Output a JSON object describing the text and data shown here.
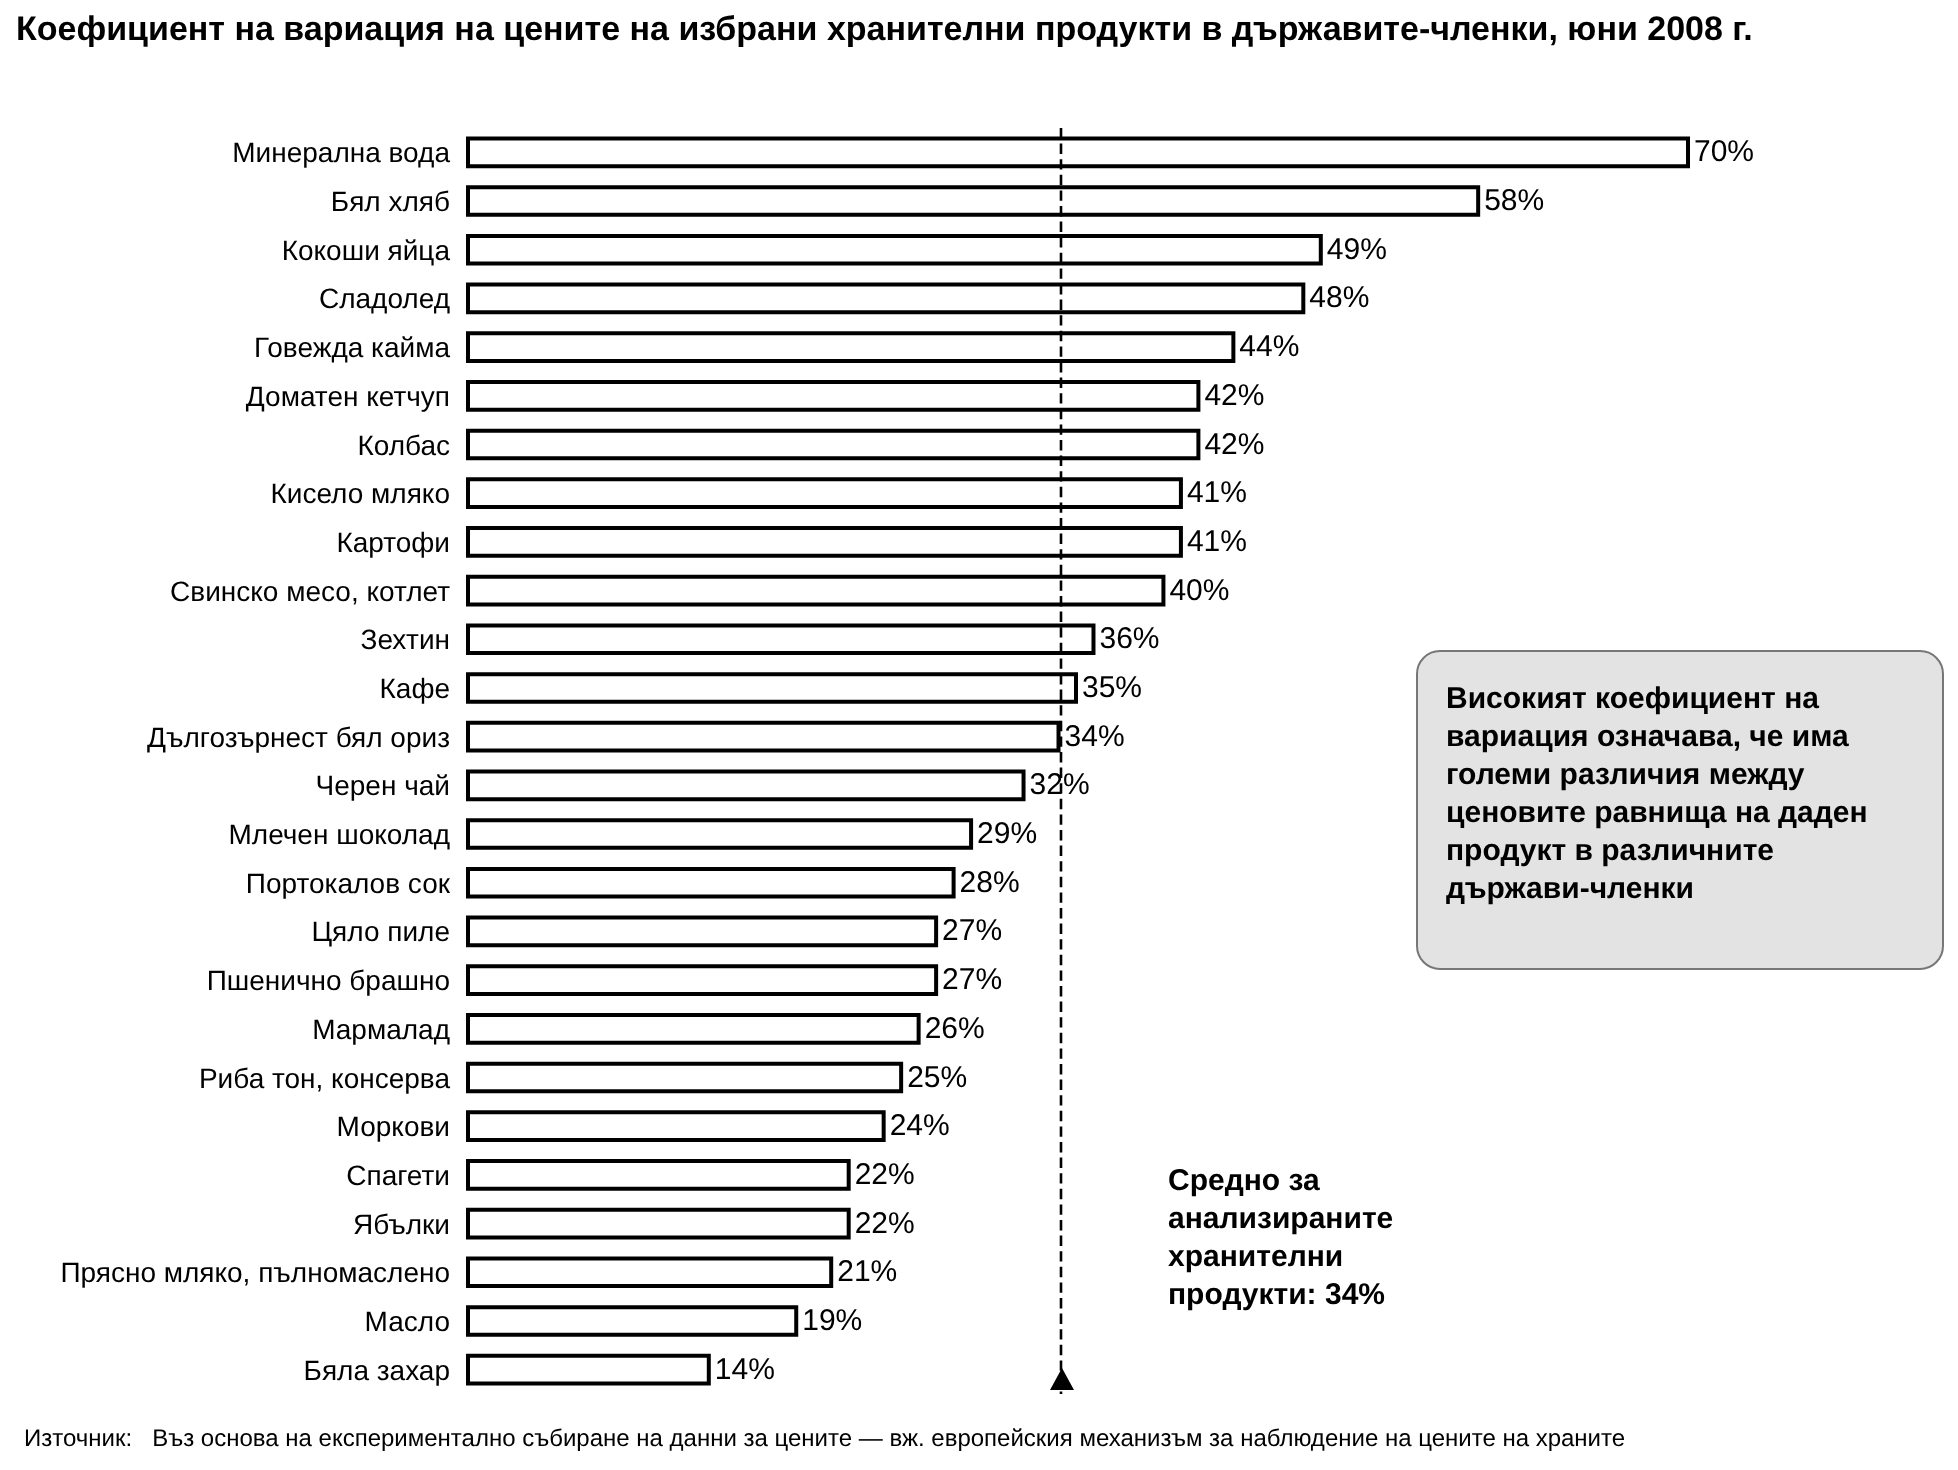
{
  "chart_data": {
    "type": "bar",
    "orientation": "horizontal",
    "title": "Коефициент на вариация на цените на избрани хранителни продукти в държавите-членки, юни 2008 г.",
    "categories": [
      "Минерална вода",
      "Бял хляб",
      "Кокоши яйца",
      "Сладолед",
      "Говежда кайма",
      "Доматен кетчуп",
      "Колбас",
      "Кисело мляко",
      "Картофи",
      "Свинско месо, котлет",
      "Зехтин",
      "Кафе",
      "Дългозърнест бял ориз",
      "Черен чай",
      "Млечен шоколад",
      "Портокалов сок",
      "Цяло пиле",
      "Пшенично брашно",
      "Мармалад",
      "Риба тон, консерва",
      "Моркови",
      "Спагети",
      "Ябълки",
      "Прясно мляко, пълномаслено",
      "Масло",
      "Бяла захар"
    ],
    "values": [
      70,
      58,
      49,
      48,
      44,
      42,
      42,
      41,
      41,
      40,
      36,
      35,
      34,
      32,
      29,
      28,
      27,
      27,
      26,
      25,
      24,
      22,
      22,
      21,
      19,
      14
    ],
    "value_labels": [
      "70%",
      "58%",
      "49%",
      "48%",
      "44%",
      "42%",
      "42%",
      "41%",
      "41%",
      "40%",
      "36%",
      "35%",
      "34%",
      "32%",
      "29%",
      "28%",
      "27%",
      "27%",
      "26%",
      "25%",
      "24%",
      "22%",
      "22%",
      "21%",
      "19%",
      "14%"
    ],
    "color": "#ffffff",
    "ref_lines": [
      {
        "axis": "x",
        "value": 34,
        "label": "Средно за анализираните хранителни продукти: 34%",
        "color": "#000000",
        "line_style": "dashed"
      }
    ],
    "annotations": [
      "Високият коефициент на вариация означава, че има големи различия между ценовите равнища на даден продукт в различните държави-членки",
      "Източник:   Въз основа на експериментално събиране на данни за цените — вж. европейския механизъм за наблюдение на цените на храните"
    ],
    "data_labels": false
  }
}
